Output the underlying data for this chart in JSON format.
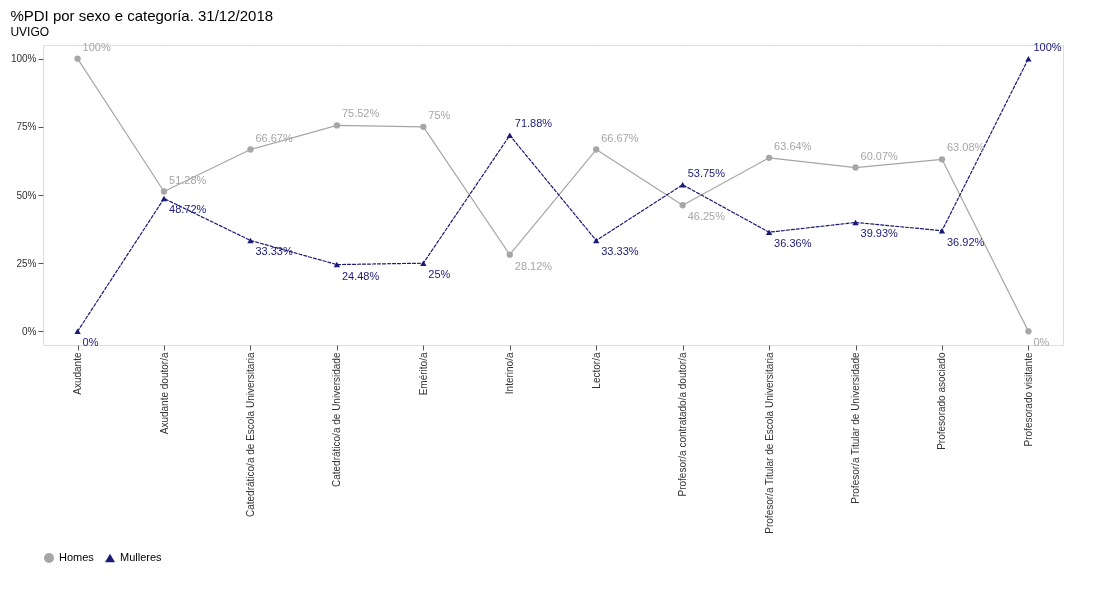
{
  "chart_data": {
    "type": "line",
    "title": "%PDI por sexo e categoría. 31/12/2018",
    "subtitle": "UVIGO",
    "categories": [
      "Axudante",
      "Axudante doutor/a",
      "Catedrático/a de Escola Universitaria",
      "Catedrático/a de Universidade",
      "Emérito/a",
      "Interino/a",
      "Lector/a",
      "Profesor/a contratado/a doutor/a",
      "Profesor/a Titular de Escola Universitaria",
      "Profesor/a Titular de Universidade",
      "Profesorado asociado",
      "Profesorado visitante"
    ],
    "series": [
      {
        "name": "Homes",
        "color": "#a6a6a6",
        "marker": "circle",
        "line_style": "solid",
        "values": [
          100,
          51.28,
          66.67,
          75.52,
          75,
          28.12,
          66.67,
          46.25,
          63.64,
          60.07,
          63.08,
          0
        ],
        "value_labels": [
          "100%",
          "51.28%",
          "66.67%",
          "75.52%",
          "75%",
          "28.12%",
          "66.67%",
          "46.25%",
          "63.64%",
          "60.07%",
          "63.08%",
          "0%"
        ]
      },
      {
        "name": "Mulleres",
        "color": "#1c1a78",
        "marker": "triangle",
        "line_style": "dashed",
        "values": [
          0,
          48.72,
          33.33,
          24.48,
          25,
          71.88,
          33.33,
          53.75,
          36.36,
          39.93,
          36.92,
          100
        ],
        "value_labels": [
          "0%",
          "48.72%",
          "33.33%",
          "24.48%",
          "25%",
          "71.88%",
          "33.33%",
          "53.75%",
          "36.36%",
          "39.93%",
          "36.92%",
          "100%"
        ]
      }
    ],
    "ylim": [
      -5,
      105
    ],
    "yticks": [
      {
        "value": 0,
        "label": "0%"
      },
      {
        "value": 25,
        "label": "25%"
      },
      {
        "value": 50,
        "label": "50%"
      },
      {
        "value": 75,
        "label": "75%"
      },
      {
        "value": 100,
        "label": "100%"
      }
    ],
    "grid": true,
    "legend": "bottom"
  }
}
